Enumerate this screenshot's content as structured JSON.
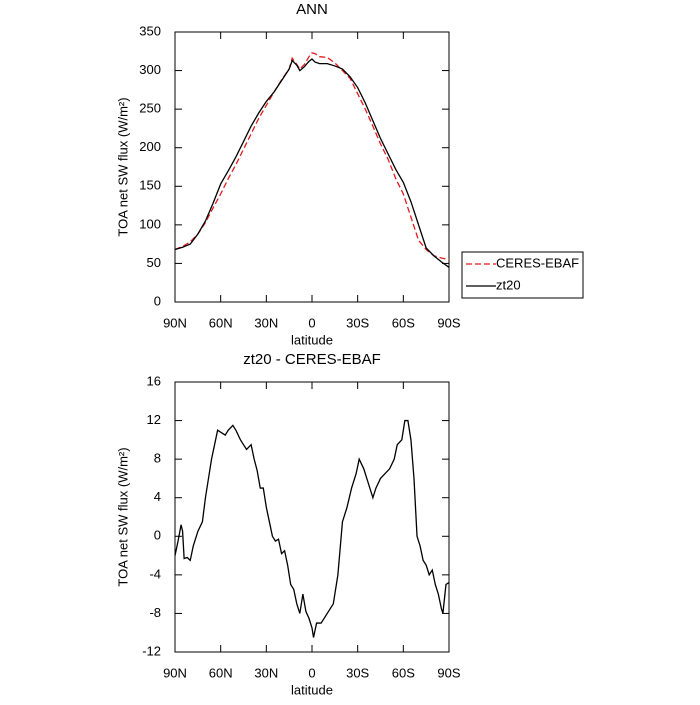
{
  "chart_data": [
    {
      "type": "line",
      "title": "ANN",
      "xlabel": "latitude",
      "ylabel": "TOA net SW flux (W/m²)",
      "x": [
        90,
        85,
        80,
        75,
        70,
        65,
        60,
        55,
        50,
        45,
        40,
        35,
        30,
        25,
        20,
        15,
        13,
        10,
        8,
        5,
        2,
        0,
        -2,
        -5,
        -10,
        -15,
        -20,
        -25,
        -30,
        -35,
        -40,
        -45,
        -50,
        -55,
        -60,
        -65,
        -70,
        -75,
        -80,
        -85,
        -90
      ],
      "series": [
        {
          "name": "CERES-EBAF",
          "color": "#e41a1c",
          "dashed": true,
          "values": [
            68,
            72,
            78,
            88,
            103,
            122,
            140,
            160,
            178,
            198,
            218,
            238,
            255,
            272,
            288,
            302,
            316,
            308,
            302,
            308,
            318,
            323,
            322,
            318,
            317,
            310,
            300,
            290,
            270,
            250,
            228,
            205,
            185,
            160,
            140,
            110,
            80,
            68,
            60,
            57,
            55
          ]
        },
        {
          "name": "zt20",
          "color": "#000000",
          "dashed": false,
          "values": [
            68,
            71,
            75,
            88,
            105,
            128,
            153,
            170,
            188,
            208,
            228,
            245,
            260,
            272,
            287,
            302,
            313,
            307,
            300,
            305,
            312,
            315,
            311,
            309,
            309,
            306,
            302,
            292,
            278,
            258,
            235,
            212,
            192,
            172,
            155,
            130,
            100,
            70,
            60,
            52,
            45
          ]
        }
      ],
      "xlim": [
        90,
        -90
      ],
      "xticks": [
        {
          "value": 90,
          "label": "90N"
        },
        {
          "value": 60,
          "label": "60N"
        },
        {
          "value": 30,
          "label": "30N"
        },
        0,
        {
          "value": -30,
          "label": "30S"
        },
        {
          "value": -60,
          "label": "60S"
        },
        {
          "value": -90,
          "label": "90S"
        }
      ],
      "ylim": [
        0,
        350
      ],
      "yticks": [
        0,
        50,
        100,
        150,
        200,
        250,
        300,
        350
      ],
      "legend": "right"
    },
    {
      "type": "line",
      "title": "zt20 - CERES-EBAF",
      "xlabel": "latitude",
      "ylabel": "TOA net SW flux (W/m²)",
      "x": [
        90,
        88,
        86,
        85,
        84,
        82,
        80,
        78,
        75,
        72,
        70,
        68,
        66,
        64,
        62,
        60,
        57,
        55,
        52,
        50,
        47,
        45,
        43,
        40,
        38,
        36,
        34,
        32,
        30,
        28,
        26,
        24,
        22,
        20,
        18,
        16,
        14,
        12,
        10,
        8,
        6,
        4,
        2,
        0,
        -1,
        -3,
        -6,
        -10,
        -14,
        -17,
        -20,
        -23,
        -26,
        -29,
        -31,
        -34,
        -36,
        -38,
        -40,
        -42,
        -45,
        -48,
        -51,
        -54,
        -56,
        -59,
        -61,
        -63,
        -65,
        -67,
        -69,
        -71,
        -73,
        -75,
        -77,
        -79,
        -81,
        -83,
        -85,
        -86,
        -88,
        -90
      ],
      "series": [
        {
          "name": "zt20",
          "color": "#000000",
          "dashed": false,
          "values": [
            -2,
            -0.5,
            1.2,
            0.5,
            -2.3,
            -2.2,
            -2.5,
            -1,
            0.5,
            1.5,
            4,
            6,
            8,
            9.5,
            11,
            10.8,
            10.5,
            11,
            11.5,
            11,
            10,
            9.5,
            9,
            9.5,
            8,
            6.8,
            5,
            5,
            3,
            1.5,
            0,
            -0.5,
            -0.3,
            -1.8,
            -1.5,
            -3,
            -5,
            -5.5,
            -7,
            -8,
            -6,
            -7.8,
            -8.5,
            -9.5,
            -10.5,
            -9,
            -9,
            -8,
            -7,
            -4,
            1.5,
            3,
            5,
            6.5,
            8,
            7,
            6,
            5,
            4,
            5,
            6,
            6.5,
            7,
            8,
            9.5,
            10,
            12,
            12,
            10,
            6,
            0,
            -1,
            -2.5,
            -3,
            -4,
            -3.5,
            -5,
            -6,
            -7.5,
            -8,
            -5,
            -4.8
          ]
        }
      ],
      "xlim": [
        90,
        -90
      ],
      "xticks": [
        {
          "value": 90,
          "label": "90N"
        },
        {
          "value": 60,
          "label": "60N"
        },
        {
          "value": 30,
          "label": "30N"
        },
        0,
        {
          "value": -30,
          "label": "30S"
        },
        {
          "value": -60,
          "label": "60S"
        },
        {
          "value": -90,
          "label": "90S"
        }
      ],
      "ylim": [
        -12,
        16
      ],
      "yticks": [
        -12,
        -8,
        -4,
        0,
        4,
        8,
        12,
        16
      ]
    }
  ]
}
